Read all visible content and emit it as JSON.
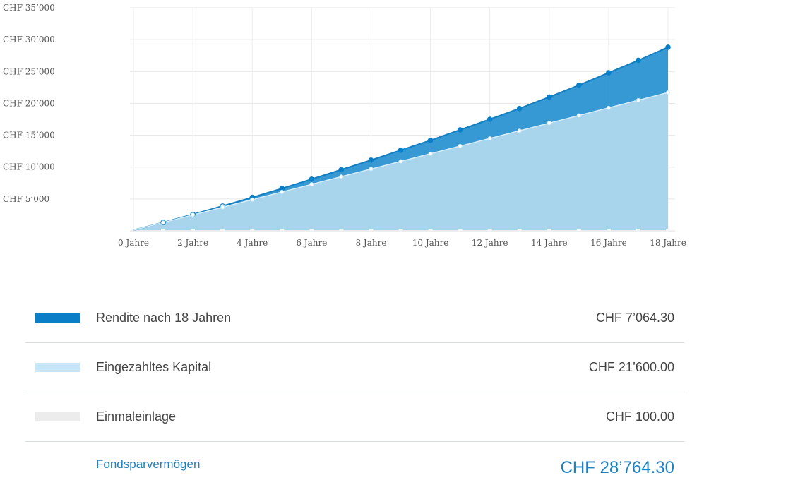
{
  "chart_data": {
    "type": "area",
    "x": [
      0,
      1,
      2,
      3,
      4,
      5,
      6,
      7,
      8,
      9,
      10,
      11,
      12,
      13,
      14,
      15,
      16,
      17,
      18
    ],
    "tick_labels_x": [
      "0 Jahre",
      "2 Jahre",
      "4 Jahre",
      "6 Jahre",
      "8 Jahre",
      "10 Jahre",
      "12 Jahre",
      "14 Jahre",
      "16 Jahre",
      "18 Jahre"
    ],
    "tick_values_x": [
      0,
      2,
      4,
      6,
      8,
      10,
      12,
      14,
      16,
      18
    ],
    "tick_labels_y": [
      "CHF 5’000",
      "CHF 10’000",
      "CHF 15’000",
      "CHF 20’000",
      "CHF 25’000",
      "CHF 30’000",
      "CHF 35’000"
    ],
    "tick_values_y": [
      5000,
      10000,
      15000,
      20000,
      25000,
      30000,
      35000
    ],
    "ylim": [
      0,
      35000
    ],
    "xlim": [
      0,
      18
    ],
    "grid": true,
    "series": [
      {
        "name": "Einmaleinlage",
        "color": "#eeeeee",
        "values": [
          100,
          100,
          100,
          100,
          100,
          100,
          100,
          100,
          100,
          100,
          100,
          100,
          100,
          100,
          100,
          100,
          100,
          100,
          100
        ]
      },
      {
        "name": "Eingezahltes Kapital",
        "color": "#a8d4ec",
        "values": [
          100,
          1300,
          2500,
          3700,
          4900,
          6100,
          7300,
          8500,
          9700,
          10900,
          12100,
          13300,
          14500,
          15700,
          16900,
          18100,
          19300,
          20500,
          21700
        ]
      },
      {
        "name": "Rendite nach 18 Jahren",
        "color": "#2b93d1",
        "values": [
          100,
          1320,
          2580,
          3890,
          5240,
          6650,
          8100,
          9600,
          11100,
          12650,
          14200,
          15850,
          17500,
          19200,
          21000,
          22850,
          24800,
          26750,
          28800
        ]
      }
    ]
  },
  "legend": [
    {
      "label": "Rendite nach 18 Jahren",
      "value": "CHF 7’064.30",
      "color": "#0a7fc7"
    },
    {
      "label": "Eingezahltes Kapital",
      "value": "CHF 21’600.00",
      "color": "#c9e6f6"
    },
    {
      "label": "Einmaleinlage",
      "value": "CHF 100.00",
      "color": "#ececec"
    }
  ],
  "total": {
    "label": "Fondsparvermögen",
    "value": "CHF 28’764.30",
    "color": "#1b82c4"
  }
}
